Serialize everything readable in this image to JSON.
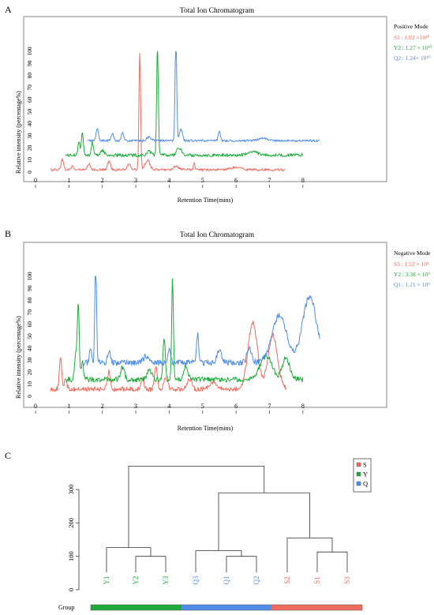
{
  "colors": {
    "S": "#ef6b5e",
    "Y": "#1fab3c",
    "Q": "#4f8de6"
  },
  "chart_data": [
    {
      "panel": "A",
      "type": "line",
      "title": "Total Ion Chromatogram",
      "xlabel": "Retention Time(mins)",
      "ylabel": "Relative intensity (percentage%)",
      "xlim": [
        0,
        8.5
      ],
      "ylim": [
        0,
        100
      ],
      "x_ticks": [
        "0",
        "1",
        "2",
        "3",
        "4",
        "5",
        "6",
        "7",
        "8"
      ],
      "y_ticks": [
        "0",
        "10",
        "20",
        "30",
        "40",
        "50",
        "60",
        "70",
        "80",
        "90",
        "100"
      ],
      "legend_title": "Positive Mode",
      "legend": [
        {
          "label": "S1 : 1.02 ×10¹⁰",
          "color_key": "S"
        },
        {
          "label": "Y2 : 1.27 × 10¹⁰",
          "color_key": "Y"
        },
        {
          "label": "Q2 : 1.24× 10¹⁰",
          "color_key": "Q"
        }
      ],
      "series": [
        {
          "name": "S1",
          "color_key": "S",
          "baseline": 2,
          "offset": 0,
          "start": 0.45,
          "end": 7.45,
          "noise": 1.0,
          "peaks": [
            [
              0.8,
              9,
              0.05
            ],
            [
              1.1,
              3,
              0.05
            ],
            [
              1.6,
              5,
              0.05
            ],
            [
              2.2,
              7,
              0.06
            ],
            [
              2.8,
              4,
              0.08
            ],
            [
              3.12,
              98,
              0.035
            ],
            [
              3.35,
              8,
              0.1
            ],
            [
              4.2,
              3,
              0.1
            ],
            [
              4.75,
              6,
              0.03
            ],
            [
              6.0,
              2,
              0.2
            ]
          ]
        },
        {
          "name": "Y2",
          "color_key": "Y",
          "baseline": 14,
          "offset": 0,
          "start": 0.9,
          "end": 8.0,
          "noise": 1.3,
          "peaks": [
            [
              1.3,
              12,
              0.04
            ],
            [
              1.4,
              20,
              0.04
            ],
            [
              1.7,
              10,
              0.05
            ],
            [
              2.0,
              4,
              0.08
            ],
            [
              3.65,
              92,
              0.035
            ],
            [
              3.4,
              3,
              0.08
            ],
            [
              4.3,
              6,
              0.1
            ],
            [
              6.5,
              3,
              0.2
            ]
          ]
        },
        {
          "name": "Q2",
          "color_key": "Q",
          "baseline": 26,
          "offset": 0,
          "start": 1.55,
          "end": 8.5,
          "noise": 0.9,
          "peaks": [
            [
              1.85,
              10,
              0.05
            ],
            [
              2.3,
              6,
              0.05
            ],
            [
              2.6,
              7,
              0.05
            ],
            [
              3.4,
              3,
              0.1
            ],
            [
              4.2,
              87,
              0.035
            ],
            [
              4.35,
              10,
              0.06
            ],
            [
              5.5,
              8,
              0.04
            ],
            [
              6.8,
              2,
              0.2
            ]
          ]
        }
      ]
    },
    {
      "panel": "B",
      "type": "line",
      "title": "Total Ion Chromatogram",
      "xlabel": "Retention Time(mins)",
      "ylabel": "Relative intensity (percentage%)",
      "xlim": [
        0,
        8.5
      ],
      "ylim": [
        0,
        100
      ],
      "x_ticks": [
        "0",
        "1",
        "2",
        "3",
        "4",
        "5",
        "6",
        "7",
        "8"
      ],
      "y_ticks": [
        "0",
        "10",
        "20",
        "30",
        "40",
        "50",
        "60",
        "70",
        "80",
        "90",
        "100"
      ],
      "legend_title": "Negative Mode",
      "legend": [
        {
          "label": "S3 : 1.52 × 10⁹",
          "color_key": "S"
        },
        {
          "label": "Y2 : 3.38 × 10⁹",
          "color_key": "Y"
        },
        {
          "label": "Q1 : 1.21 × 10⁹",
          "color_key": "Q"
        }
      ],
      "series": [
        {
          "name": "S3",
          "color_key": "S",
          "baseline": 6,
          "offset": 0,
          "start": 0.45,
          "end": 7.5,
          "noise": 2.0,
          "peaks": [
            [
              0.75,
              25,
              0.05
            ],
            [
              0.9,
              10,
              0.05
            ],
            [
              2.2,
              15,
              0.06
            ],
            [
              3.2,
              10,
              0.06
            ],
            [
              3.6,
              20,
              0.06
            ],
            [
              3.9,
              10,
              0.08
            ],
            [
              4.6,
              8,
              0.1
            ],
            [
              5.3,
              6,
              0.15
            ],
            [
              6.5,
              55,
              0.2
            ],
            [
              7.1,
              45,
              0.2
            ]
          ]
        },
        {
          "name": "Y2",
          "color_key": "Y",
          "baseline": 14,
          "offset": 0,
          "start": 0.9,
          "end": 8.0,
          "noise": 2.2,
          "peaks": [
            [
              1.2,
              20,
              0.05
            ],
            [
              1.28,
              65,
              0.04
            ],
            [
              1.4,
              15,
              0.05
            ],
            [
              2.6,
              10,
              0.08
            ],
            [
              3.4,
              8,
              0.1
            ],
            [
              3.85,
              35,
              0.05
            ],
            [
              4.1,
              85,
              0.035
            ],
            [
              4.5,
              12,
              0.08
            ],
            [
              6.9,
              20,
              0.25
            ],
            [
              7.5,
              18,
              0.15
            ]
          ]
        },
        {
          "name": "Q1",
          "color_key": "Q",
          "baseline": 28,
          "offset": 0,
          "start": 1.45,
          "end": 8.5,
          "noise": 2.5,
          "peaks": [
            [
              1.65,
              12,
              0.05
            ],
            [
              1.8,
              87,
              0.035
            ],
            [
              2.2,
              10,
              0.06
            ],
            [
              3.3,
              6,
              0.1
            ],
            [
              4.0,
              12,
              0.06
            ],
            [
              4.85,
              25,
              0.04
            ],
            [
              5.5,
              10,
              0.1
            ],
            [
              6.4,
              12,
              0.1
            ],
            [
              7.3,
              40,
              0.3
            ],
            [
              8.2,
              55,
              0.3
            ]
          ]
        }
      ]
    },
    {
      "panel": "C",
      "type": "dendrogram",
      "ylim": [
        0,
        350
      ],
      "y_ticks": [
        "0",
        "100",
        "200",
        "300"
      ],
      "leaves": [
        {
          "label": "Y1",
          "color_key": "Y"
        },
        {
          "label": "Y2",
          "color_key": "Y"
        },
        {
          "label": "Y3",
          "color_key": "Y"
        },
        {
          "label": "Q3",
          "color_key": "Q"
        },
        {
          "label": "Q1",
          "color_key": "Q"
        },
        {
          "label": "Q2",
          "color_key": "Q"
        },
        {
          "label": "S2",
          "color_key": "S"
        },
        {
          "label": "S1",
          "color_key": "S"
        },
        {
          "label": "S3",
          "color_key": "S"
        }
      ],
      "merges": [
        {
          "a": 1,
          "b": 2,
          "height": 100
        },
        {
          "a": 0,
          "b": "m0",
          "height": 126
        },
        {
          "a": 4,
          "b": 5,
          "height": 100
        },
        {
          "a": 3,
          "b": "m2",
          "height": 117
        },
        {
          "a": 7,
          "b": 8,
          "height": 113
        },
        {
          "a": 6,
          "b": "m4",
          "height": 155
        },
        {
          "a": "m3",
          "b": "m5",
          "height": 290
        },
        {
          "a": "m1",
          "b": "m6",
          "height": 370
        }
      ],
      "legend": [
        {
          "label": "S",
          "color_key": "S"
        },
        {
          "label": "Y",
          "color_key": "Y"
        },
        {
          "label": "Q",
          "color_key": "Q"
        }
      ],
      "group_label": "Group",
      "group_bar": [
        "Y",
        "Q",
        "S"
      ]
    }
  ],
  "panels": {
    "A": "A",
    "B": "B",
    "C": "C"
  }
}
